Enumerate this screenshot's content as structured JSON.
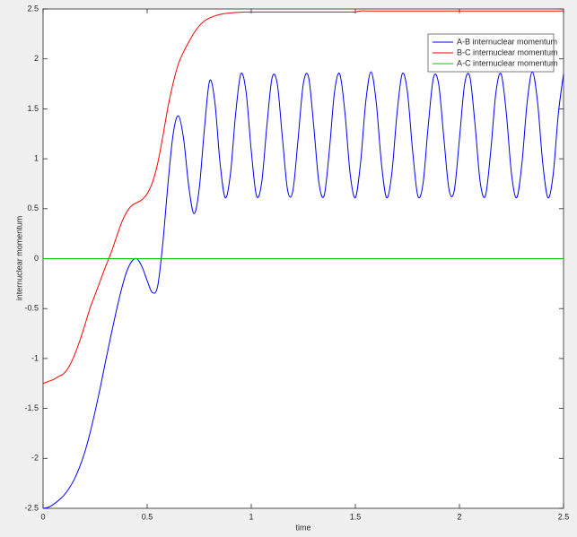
{
  "chart_data": {
    "type": "line",
    "xlabel": "time",
    "ylabel": "internuclear momentum",
    "xlim": [
      0,
      2.5
    ],
    "ylim": [
      -2.5,
      2.5
    ],
    "xticks": [
      0,
      0.5,
      1,
      1.5,
      2,
      2.5
    ],
    "yticks": [
      -2.5,
      -2,
      -1.5,
      -1,
      -0.5,
      0,
      0.5,
      1,
      1.5,
      2,
      2.5
    ],
    "legend": "upper right",
    "x": [
      0,
      0.025,
      0.05,
      0.075,
      0.1,
      0.125,
      0.15,
      0.175,
      0.2,
      0.225,
      0.25,
      0.275,
      0.3,
      0.325,
      0.35,
      0.375,
      0.4,
      0.425,
      0.45,
      0.475,
      0.5,
      0.525,
      0.55,
      0.575,
      0.6,
      0.625,
      0.65,
      0.675,
      0.7,
      0.725,
      0.75,
      0.775,
      0.8,
      0.825,
      0.85,
      0.875,
      0.9,
      0.925,
      0.95,
      0.975,
      1,
      1.025,
      1.05,
      1.075,
      1.1,
      1.125,
      1.15,
      1.175,
      1.2,
      1.225,
      1.25,
      1.275,
      1.3,
      1.325,
      1.35,
      1.375,
      1.4,
      1.425,
      1.45,
      1.475,
      1.5,
      1.525,
      1.55,
      1.575,
      1.6,
      1.625,
      1.65,
      1.675,
      1.7,
      1.725,
      1.75,
      1.775,
      1.8,
      1.825,
      1.85,
      1.875,
      1.9,
      1.925,
      1.95,
      1.975,
      2,
      2.025,
      2.05,
      2.075,
      2.1,
      2.125,
      2.15,
      2.175,
      2.2,
      2.225,
      2.25,
      2.275,
      2.3,
      2.325,
      2.35,
      2.375,
      2.4,
      2.425,
      2.45,
      2.475,
      2.5
    ],
    "series": [
      {
        "name": "A-B internuclear momentum",
        "color": "#0000ff",
        "values": [
          -2.5,
          -2.49,
          -2.46,
          -2.42,
          -2.37,
          -2.3,
          -2.21,
          -2.09,
          -1.94,
          -1.75,
          -1.53,
          -1.29,
          -1.03,
          -0.78,
          -0.54,
          -0.32,
          -0.14,
          -0.03,
          0,
          -0.08,
          -0.22,
          -0.34,
          -0.28,
          0.15,
          0.75,
          1.25,
          1.43,
          1.2,
          0.72,
          0.45,
          0.7,
          1.3,
          1.78,
          1.57,
          0.96,
          0.61,
          0.85,
          1.45,
          1.85,
          1.67,
          1.08,
          0.63,
          0.76,
          1.33,
          1.81,
          1.75,
          1.2,
          0.68,
          0.68,
          1.2,
          1.75,
          1.82,
          1.33,
          0.76,
          0.63,
          1.08,
          1.67,
          1.85,
          1.46,
          0.85,
          0.61,
          0.96,
          1.57,
          1.87,
          1.57,
          0.96,
          0.61,
          0.85,
          1.45,
          1.85,
          1.67,
          1.08,
          0.63,
          0.75,
          1.33,
          1.81,
          1.75,
          1.21,
          0.69,
          0.68,
          1.2,
          1.75,
          1.82,
          1.34,
          0.76,
          0.63,
          1.07,
          1.66,
          1.85,
          1.46,
          0.85,
          0.61,
          0.95,
          1.56,
          1.87,
          1.57,
          0.96,
          0.61,
          0.84,
          1.45,
          1.85
        ]
      },
      {
        "name": "B-C internuclear momentum",
        "color": "#ff0000",
        "values": [
          -1.25,
          -1.23,
          -1.21,
          -1.18,
          -1.15,
          -1.08,
          -0.97,
          -0.83,
          -0.67,
          -0.5,
          -0.36,
          -0.22,
          -0.08,
          0.05,
          0.2,
          0.35,
          0.46,
          0.53,
          0.56,
          0.59,
          0.65,
          0.76,
          0.95,
          1.22,
          1.52,
          1.76,
          1.95,
          2.07,
          2.17,
          2.26,
          2.33,
          2.38,
          2.41,
          2.43,
          2.445,
          2.455,
          2.46,
          2.465,
          2.468,
          2.47,
          2.47,
          2.47,
          2.47,
          2.47,
          2.47,
          2.47,
          2.47,
          2.47,
          2.47,
          2.47,
          2.47,
          2.47,
          2.47,
          2.47,
          2.47,
          2.47,
          2.47,
          2.47,
          2.47,
          2.47,
          2.47,
          2.48,
          2.48,
          2.48,
          2.48,
          2.48,
          2.48,
          2.48,
          2.48,
          2.48,
          2.48,
          2.48,
          2.48,
          2.48,
          2.48,
          2.48,
          2.48,
          2.48,
          2.48,
          2.48,
          2.48,
          2.48,
          2.48,
          2.48,
          2.48,
          2.48,
          2.48,
          2.48,
          2.48,
          2.48,
          2.48,
          2.48,
          2.48,
          2.48,
          2.48,
          2.48,
          2.48,
          2.48,
          2.48,
          2.48,
          2.48
        ]
      },
      {
        "name": "A-C internuclear momentum",
        "color": "#00cc00",
        "values": [
          0,
          0,
          0,
          0,
          0,
          0,
          0,
          0,
          0,
          0,
          0,
          0,
          0,
          0,
          0,
          0,
          0,
          0,
          0,
          0,
          0,
          0,
          0,
          0,
          0,
          0,
          0,
          0,
          0,
          0,
          0,
          0,
          0,
          0,
          0,
          0,
          0,
          0,
          0,
          0,
          0,
          0,
          0,
          0,
          0,
          0,
          0,
          0,
          0,
          0,
          0,
          0,
          0,
          0,
          0,
          0,
          0,
          0,
          0,
          0,
          0,
          0,
          0,
          0,
          0,
          0,
          0,
          0,
          0,
          0,
          0,
          0,
          0,
          0,
          0,
          0,
          0,
          0,
          0,
          0,
          0,
          0,
          0,
          0,
          0,
          0,
          0,
          0,
          0,
          0,
          0,
          0,
          0,
          0,
          0,
          0,
          0,
          0,
          0,
          0,
          0
        ]
      }
    ]
  }
}
